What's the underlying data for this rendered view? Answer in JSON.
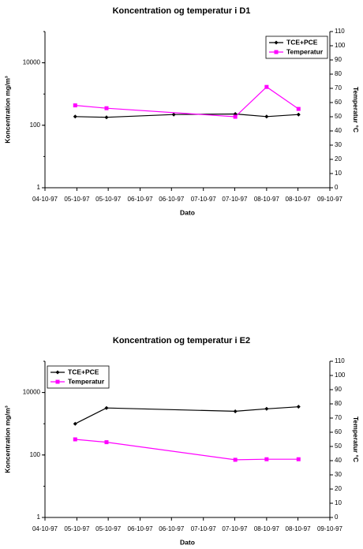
{
  "chart_data": [
    {
      "type": "line",
      "title": "Koncentration og temperatur i D1",
      "y_label": "Koncentration mg/m³",
      "y2_label": "Temperatur °C",
      "x_label": "Dato",
      "log_y": true,
      "legend": "upper right",
      "xlim": [
        4,
        9
      ],
      "xticks": [
        {
          "value": 4,
          "label": "04-10-97"
        },
        {
          "value": 4.56,
          "label": "05-10-97"
        },
        {
          "value": 5.11,
          "label": "05-10-97"
        },
        {
          "value": 5.67,
          "label": "06-10-97"
        },
        {
          "value": 6.22,
          "label": "06-10-97"
        },
        {
          "value": 6.78,
          "label": "07-10-97"
        },
        {
          "value": 7.33,
          "label": "07-10-97"
        },
        {
          "value": 7.89,
          "label": "08-10-97"
        },
        {
          "value": 8.44,
          "label": "08-10-97"
        },
        {
          "value": 9,
          "label": "09-10-97"
        }
      ],
      "ylim": [
        1,
        100000
      ],
      "yticks": [
        1,
        100,
        10000
      ],
      "y2lim": [
        0,
        110
      ],
      "y2ticks": [
        0,
        10,
        20,
        30,
        40,
        50,
        60,
        70,
        80,
        90,
        100,
        110
      ],
      "series": [
        {
          "name": "TCE+PCE",
          "color": "#000000",
          "marker": "diamond",
          "x": [
            4.53,
            5.08,
            6.26,
            7.34,
            7.89,
            8.45
          ],
          "values": [
            190,
            180,
            220,
            230,
            190,
            220
          ]
        },
        {
          "name": "Temperatur",
          "color": "#ff00ff",
          "marker": "square",
          "axis": "y2",
          "x": [
            4.53,
            5.08,
            7.34,
            7.89,
            8.45
          ],
          "values": [
            58,
            56,
            50,
            71,
            55.5
          ]
        }
      ]
    },
    {
      "type": "line",
      "title": "Koncentration og temperatur i E2",
      "y_label": "Koncentration mg/m³",
      "y2_label": "Temperatur °C",
      "x_label": "Dato",
      "log_y": true,
      "legend": "upper left",
      "xlim": [
        4,
        9
      ],
      "xticks": [
        {
          "value": 4,
          "label": "04-10-97"
        },
        {
          "value": 4.56,
          "label": "05-10-97"
        },
        {
          "value": 5.11,
          "label": "05-10-97"
        },
        {
          "value": 5.67,
          "label": "06-10-97"
        },
        {
          "value": 6.22,
          "label": "06-10-97"
        },
        {
          "value": 6.78,
          "label": "07-10-97"
        },
        {
          "value": 7.33,
          "label": "07-10-97"
        },
        {
          "value": 7.89,
          "label": "08-10-97"
        },
        {
          "value": 8.44,
          "label": "08-10-97"
        },
        {
          "value": 9,
          "label": "09-10-97"
        }
      ],
      "ylim": [
        1,
        100000
      ],
      "yticks": [
        1,
        100,
        10000
      ],
      "y2lim": [
        0,
        110
      ],
      "y2ticks": [
        0,
        10,
        20,
        30,
        40,
        50,
        60,
        70,
        80,
        90,
        100,
        110
      ],
      "series": [
        {
          "name": "TCE+PCE",
          "color": "#000000",
          "marker": "diamond",
          "x": [
            4.53,
            5.08,
            7.34,
            7.89,
            8.45
          ],
          "values": [
            1000,
            3200,
            2500,
            3000,
            3500
          ]
        },
        {
          "name": "Temperatur",
          "color": "#ff00ff",
          "marker": "square",
          "axis": "y2",
          "x": [
            4.53,
            5.08,
            7.34,
            7.89,
            8.45
          ],
          "values": [
            55,
            53,
            40.6,
            41,
            41
          ]
        }
      ]
    }
  ]
}
